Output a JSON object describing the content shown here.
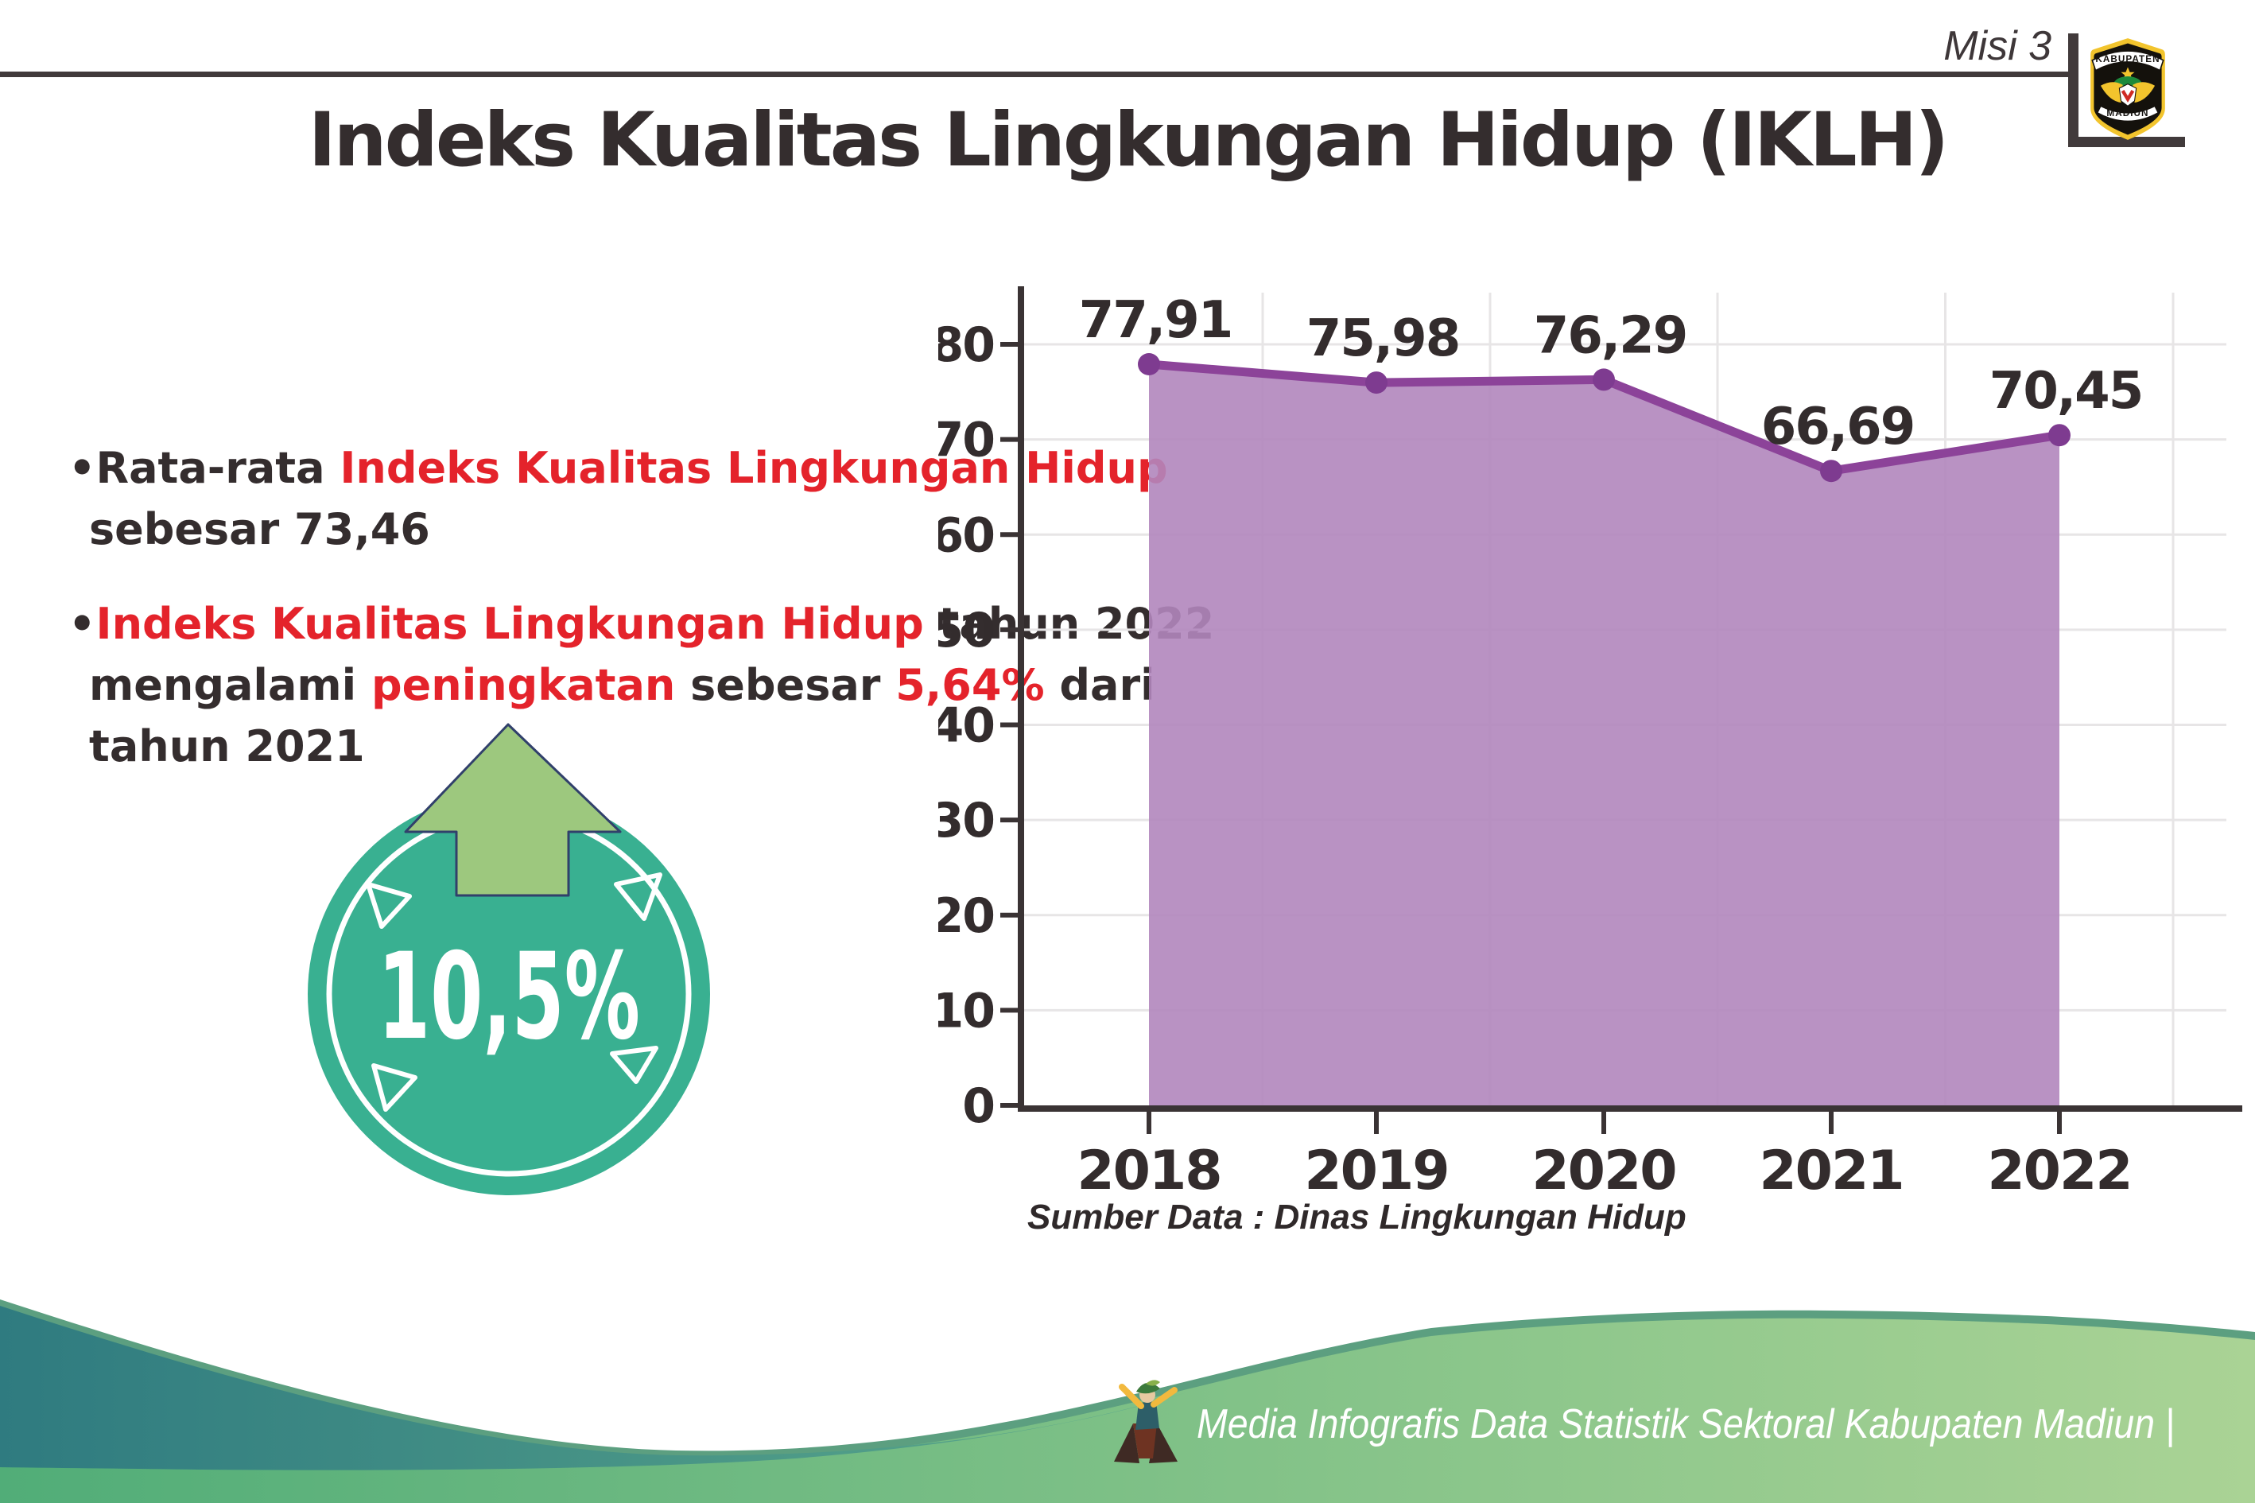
{
  "header": {
    "misi": "Misi 3",
    "title": "Indeks Kualitas Lingkungan Hidup (IKLH)",
    "logo": {
      "top": "KABUPATEN",
      "bottom": "MADIUN"
    }
  },
  "bullets": {
    "b1": {
      "bullet": "•",
      "seg_dark": "Rata-rata ",
      "seg_red": "Indeks Kualitas Lingkungan Hidup",
      "line2": "sebesar 73,46"
    },
    "b2": {
      "bullet": "•",
      "seg_red": "Indeks Kualitas Lingkungan Hidup",
      "seg_dark": " tahun 2022",
      "l2_d1": "mengalami ",
      "l2_r1": "peningkatan",
      "l2_d2": " sebesar ",
      "l2_r2": "5,64%",
      "l2_d3": " dari",
      "line3": "tahun 2021"
    }
  },
  "badge": {
    "value": "10,5%"
  },
  "chart_data": {
    "type": "area",
    "title": "",
    "categories": [
      "2018",
      "2019",
      "2020",
      "2021",
      "2022"
    ],
    "series": [
      {
        "name": "IKLH",
        "values": [
          77.91,
          75.98,
          76.29,
          66.69,
          70.45
        ]
      }
    ],
    "value_labels": [
      "77,91",
      "75,98",
      "76,29",
      "66,69",
      "70,45"
    ],
    "ylim": [
      0,
      80
    ],
    "ytick_step": 10,
    "yticks": [
      "0",
      "10",
      "20",
      "30",
      "40",
      "50",
      "60",
      "70",
      "80"
    ],
    "grid": true,
    "legend_position": "none",
    "area_color": "#b186bd",
    "line_color": "#8c4399",
    "marker_color": "#7e3b90",
    "grid_color": "#e7e5e6",
    "axis_color": "#3a3334",
    "label_color": "#332c2d"
  },
  "source_note": "Sumber Data : Dinas Lingkungan Hidup",
  "footer": {
    "text": "Media Infografis Data Statistik Sektoral Kabupaten Madiun |"
  },
  "colors": {
    "red": "#e4232b",
    "dark": "#342d2e",
    "badge_teal": "#39b091",
    "arrow_green": "#9dc87e",
    "footer_teal_1": "#2f7b80",
    "footer_teal_2": "#5ca98b",
    "footer_green_1": "#51ad78",
    "footer_green_2": "#aad395"
  }
}
